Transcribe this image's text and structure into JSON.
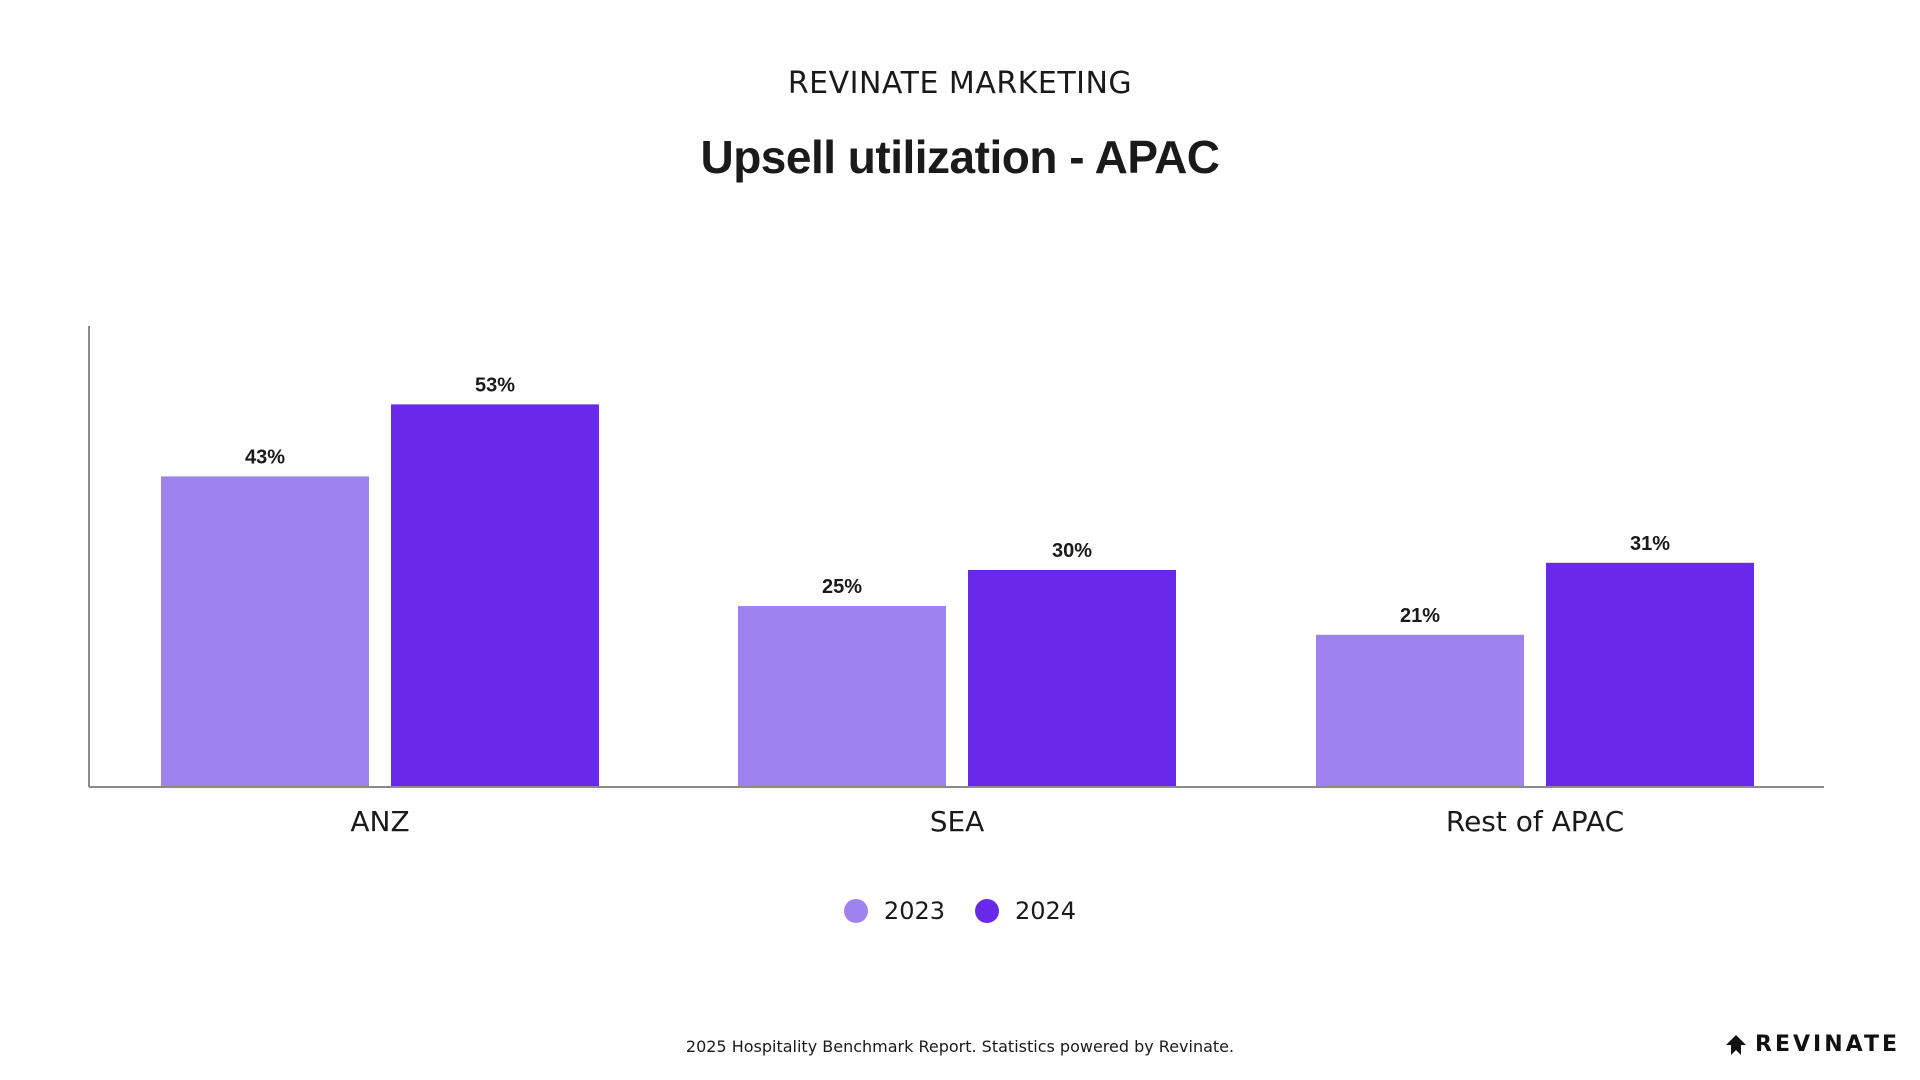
{
  "header": {
    "eyebrow": "REVINATE MARKETING",
    "title": "Upsell utilization - APAC"
  },
  "chart_data": {
    "type": "bar",
    "categories": [
      "ANZ",
      "SEA",
      "Rest of APAC"
    ],
    "series": [
      {
        "name": "2023",
        "values": [
          43,
          25,
          21
        ],
        "color": "#9e82ee"
      },
      {
        "name": "2024",
        "values": [
          53,
          30,
          31
        ],
        "color": "#6829ea"
      }
    ],
    "unit": "%",
    "ylim": [
      0,
      60
    ],
    "grid": false,
    "legend_position": "bottom-center"
  },
  "footer": {
    "text": "2025 Hospitality Benchmark Report. Statistics powered by Revinate."
  },
  "brand": {
    "name": "REVINATE",
    "icon": "revinate-logo-icon"
  }
}
